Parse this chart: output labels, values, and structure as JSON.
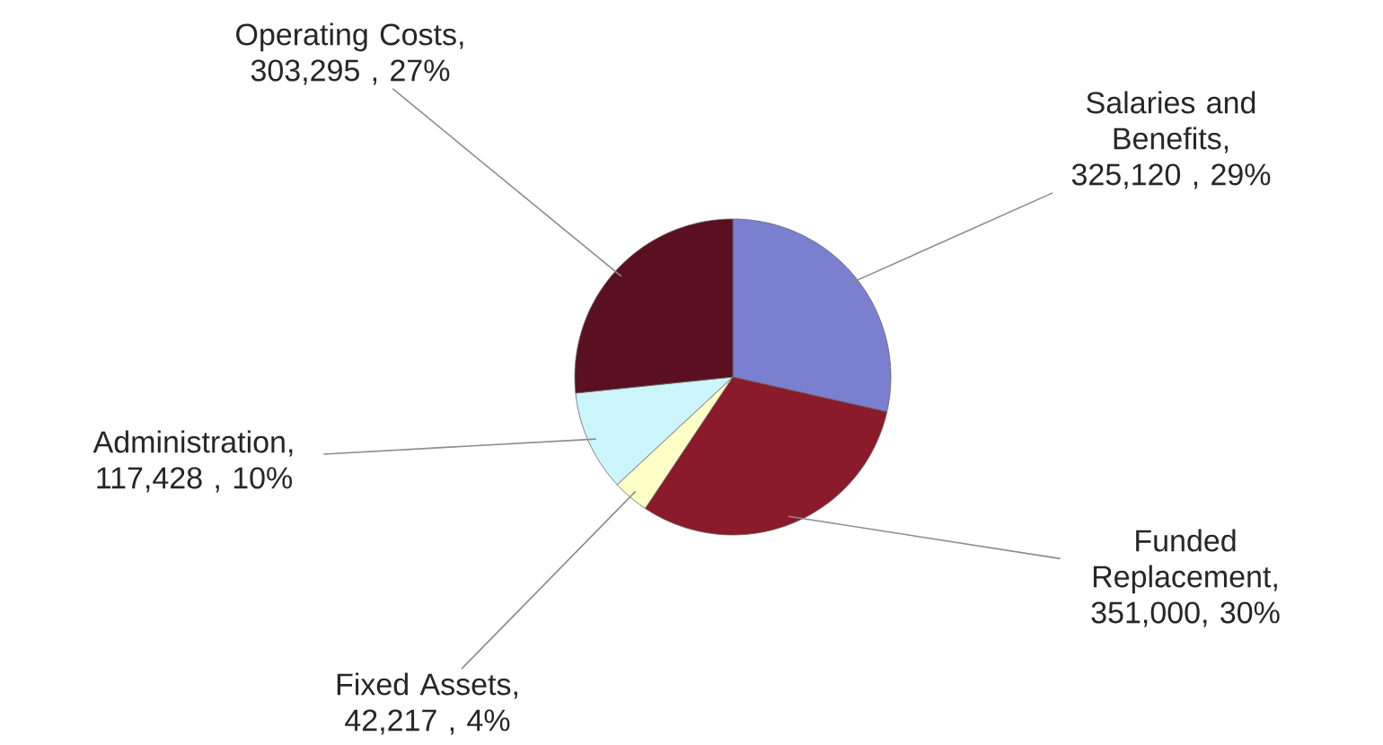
{
  "chart_data": {
    "type": "pie",
    "categories": [
      "Salaries and Benefits",
      "Funded Replacement",
      "Fixed Assets",
      "Administration",
      "Operating Costs"
    ],
    "values": [
      325120,
      351000,
      42217,
      117428,
      303295
    ],
    "value_labels": [
      ", 325,120 , 29%",
      ", 351,000, 30%",
      ", 42,217 , 4%",
      ", 117,428 , 10%",
      ", 303,295 , 27%"
    ],
    "colors": [
      "#7b7fd0",
      "#8b1a2a",
      "#ffffc8",
      "#ccf5fb",
      "#5a1020"
    ]
  }
}
